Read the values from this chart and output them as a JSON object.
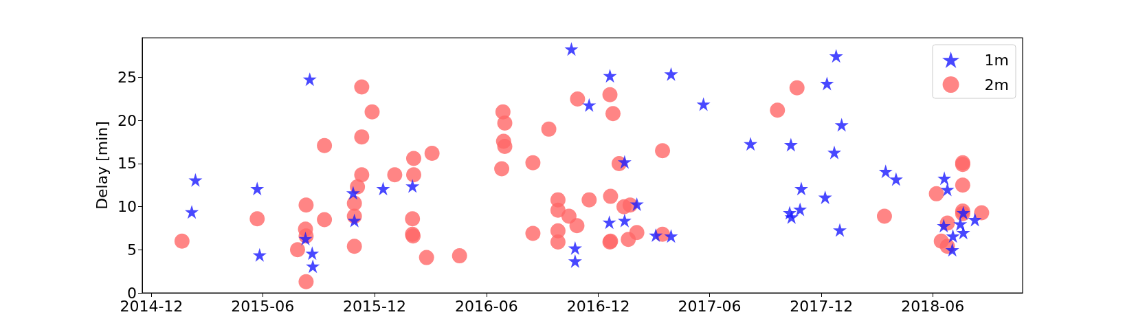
{
  "chart_data": {
    "type": "scatter",
    "ylabel": "Delay [min]",
    "xlim": [
      "2014-11-16",
      "2018-10-26"
    ],
    "xticks": [
      "2014-12",
      "2015-06",
      "2015-12",
      "2016-06",
      "2016-12",
      "2017-06",
      "2017-12",
      "2018-06"
    ],
    "ylim": [
      0,
      29.6
    ],
    "yticks": [
      0,
      5,
      10,
      15,
      20,
      25
    ],
    "grid": false,
    "legend": "top right",
    "series": [
      {
        "name": "1m",
        "color": "#1a1aff",
        "marker": "star",
        "x": [
          "2015-02-05",
          "2015-02-11",
          "2015-05-23",
          "2015-05-27",
          "2015-08-17",
          "2015-08-10",
          "2015-08-21",
          "2015-08-22",
          "2015-10-27",
          "2015-10-29",
          "2015-12-15",
          "2016-02-01",
          "2016-10-18",
          "2016-10-24",
          "2016-10-24",
          "2016-11-16",
          "2016-12-20",
          "2016-12-19",
          "2017-01-13",
          "2017-01-13",
          "2017-02-02",
          "2017-03-05",
          "2017-03-30",
          "2017-03-30",
          "2017-05-22",
          "2017-08-07",
          "2017-10-12",
          "2017-10-10",
          "2017-10-13",
          "2017-10-27",
          "2017-10-29",
          "2017-12-07",
          "2017-12-10",
          "2017-12-22",
          "2017-12-25",
          "2017-12-31",
          "2018-01-03",
          "2018-03-16",
          "2018-04-02",
          "2018-06-20",
          "2018-06-25",
          "2018-06-19",
          "2018-07-03",
          "2018-07-04",
          "2018-07-16",
          "2018-07-21",
          "2018-07-21",
          "2018-08-09"
        ],
        "values": [
          9.4,
          13.1,
          12.1,
          4.4,
          24.8,
          6.3,
          4.6,
          3.1,
          11.6,
          8.4,
          12.1,
          12.4,
          28.3,
          5.2,
          3.7,
          21.8,
          25.2,
          8.2,
          15.2,
          8.4,
          10.3,
          6.7,
          25.4,
          6.6,
          21.9,
          17.3,
          17.2,
          9.3,
          8.8,
          9.7,
          12.1,
          11.1,
          24.3,
          16.3,
          27.5,
          7.3,
          19.5,
          14.1,
          13.2,
          13.3,
          12.0,
          7.8,
          5.0,
          6.6,
          8.0,
          7.0,
          9.3,
          8.5
        ]
      },
      {
        "name": "2m",
        "color": "#ff6666",
        "marker": "circle",
        "x": [
          "2015-01-20",
          "2015-05-23",
          "2015-07-28",
          "2015-08-11",
          "2015-08-10",
          "2015-08-11",
          "2015-08-11",
          "2015-09-10",
          "2015-09-10",
          "2015-10-29",
          "2015-10-29",
          "2015-10-29",
          "2015-11-03",
          "2015-11-10",
          "2015-11-10",
          "2015-11-10",
          "2015-11-27",
          "2016-01-03",
          "2016-02-03",
          "2016-02-03",
          "2016-02-01",
          "2016-02-01",
          "2016-02-02",
          "2016-02-24",
          "2016-03-04",
          "2016-04-18",
          "2016-06-28",
          "2016-07-01",
          "2016-06-29",
          "2016-07-01",
          "2016-06-26",
          "2016-08-16",
          "2016-08-16",
          "2016-09-11",
          "2016-09-26",
          "2016-09-26",
          "2016-09-26",
          "2016-09-26",
          "2016-10-14",
          "2016-10-27",
          "2016-10-28",
          "2016-11-16",
          "2016-12-20",
          "2016-12-25",
          "2016-12-21",
          "2016-12-20",
          "2016-12-21",
          "2017-01-04",
          "2017-01-12",
          "2017-01-22",
          "2017-01-19",
          "2017-02-02",
          "2017-03-16",
          "2017-03-16",
          "2017-09-20",
          "2017-10-22",
          "2018-03-14",
          "2018-06-07",
          "2018-06-15",
          "2018-06-25",
          "2018-06-25",
          "2018-07-20",
          "2018-07-20",
          "2018-07-20",
          "2018-07-20",
          "2018-07-20",
          "2018-08-20"
        ],
        "values": [
          6.0,
          8.6,
          5.0,
          10.2,
          7.4,
          6.6,
          1.3,
          17.1,
          8.5,
          10.4,
          8.9,
          5.4,
          12.3,
          23.9,
          18.1,
          13.7,
          21.0,
          13.7,
          15.6,
          13.7,
          8.6,
          6.8,
          6.6,
          4.1,
          16.2,
          4.3,
          21.0,
          19.7,
          17.6,
          17.0,
          14.4,
          15.1,
          6.9,
          19.0,
          10.8,
          9.6,
          7.2,
          5.9,
          8.9,
          7.8,
          22.5,
          10.8,
          23.0,
          20.8,
          11.2,
          5.9,
          6.0,
          15.0,
          10.0,
          10.2,
          6.2,
          7.0,
          16.5,
          6.8,
          21.2,
          23.8,
          8.9,
          11.5,
          6.0,
          8.1,
          5.4,
          15.1,
          14.9,
          12.5,
          9.5,
          9.2,
          9.3
        ]
      }
    ]
  }
}
